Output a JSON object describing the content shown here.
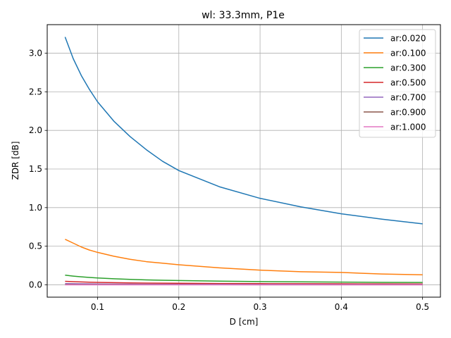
{
  "chart_data": {
    "type": "line",
    "title": "wl: 33.3mm, P1e",
    "xlabel": "D [cm]",
    "ylabel": "ZDR [dB]",
    "xlim": [
      0.038,
      0.522
    ],
    "ylim": [
      -0.16,
      3.37
    ],
    "xticks": [
      0.1,
      0.2,
      0.3,
      0.4,
      0.5
    ],
    "xtick_labels": [
      "0.1",
      "0.2",
      "0.3",
      "0.4",
      "0.5"
    ],
    "yticks": [
      0.0,
      0.5,
      1.0,
      1.5,
      2.0,
      2.5,
      3.0
    ],
    "ytick_labels": [
      "0.0",
      "0.5",
      "1.0",
      "1.5",
      "2.0",
      "2.5",
      "3.0"
    ],
    "grid": true,
    "legend_position": "top-right",
    "x": [
      0.06,
      0.07,
      0.08,
      0.09,
      0.1,
      0.12,
      0.14,
      0.16,
      0.18,
      0.2,
      0.25,
      0.3,
      0.35,
      0.4,
      0.45,
      0.5
    ],
    "series": [
      {
        "name": "ar:0.020",
        "color": "#1f77b4",
        "values": [
          3.21,
          2.93,
          2.71,
          2.53,
          2.37,
          2.12,
          1.92,
          1.75,
          1.6,
          1.48,
          1.27,
          1.12,
          1.01,
          0.92,
          0.85,
          0.79
        ]
      },
      {
        "name": "ar:0.100",
        "color": "#ff7f0e",
        "values": [
          0.59,
          0.54,
          0.49,
          0.45,
          0.42,
          0.37,
          0.33,
          0.3,
          0.28,
          0.26,
          0.22,
          0.19,
          0.17,
          0.16,
          0.14,
          0.13
        ]
      },
      {
        "name": "ar:0.300",
        "color": "#2ca02c",
        "values": [
          0.125,
          0.113,
          0.103,
          0.095,
          0.088,
          0.078,
          0.07,
          0.064,
          0.059,
          0.055,
          0.047,
          0.042,
          0.038,
          0.035,
          0.032,
          0.03
        ]
      },
      {
        "name": "ar:0.500",
        "color": "#d62728",
        "values": [
          0.045,
          0.041,
          0.037,
          0.034,
          0.032,
          0.028,
          0.025,
          0.023,
          0.021,
          0.02,
          0.017,
          0.015,
          0.014,
          0.013,
          0.012,
          0.011
        ]
      },
      {
        "name": "ar:0.700",
        "color": "#9467bd",
        "values": [
          0.015,
          0.014,
          0.013,
          0.012,
          0.011,
          0.01,
          0.009,
          0.008,
          0.007,
          0.007,
          0.006,
          0.005,
          0.005,
          0.004,
          0.004,
          0.004
        ]
      },
      {
        "name": "ar:0.900",
        "color": "#8c564b",
        "values": [
          0.004,
          0.004,
          0.003,
          0.003,
          0.003,
          0.003,
          0.002,
          0.002,
          0.002,
          0.002,
          0.002,
          0.001,
          0.001,
          0.001,
          0.001,
          0.001
        ]
      },
      {
        "name": "ar:1.000",
        "color": "#e377c2",
        "values": [
          0.0,
          0.0,
          0.0,
          0.0,
          0.0,
          0.0,
          0.0,
          0.0,
          0.0,
          0.0,
          0.0,
          0.0,
          0.0,
          0.0,
          0.0,
          0.0
        ]
      }
    ]
  }
}
